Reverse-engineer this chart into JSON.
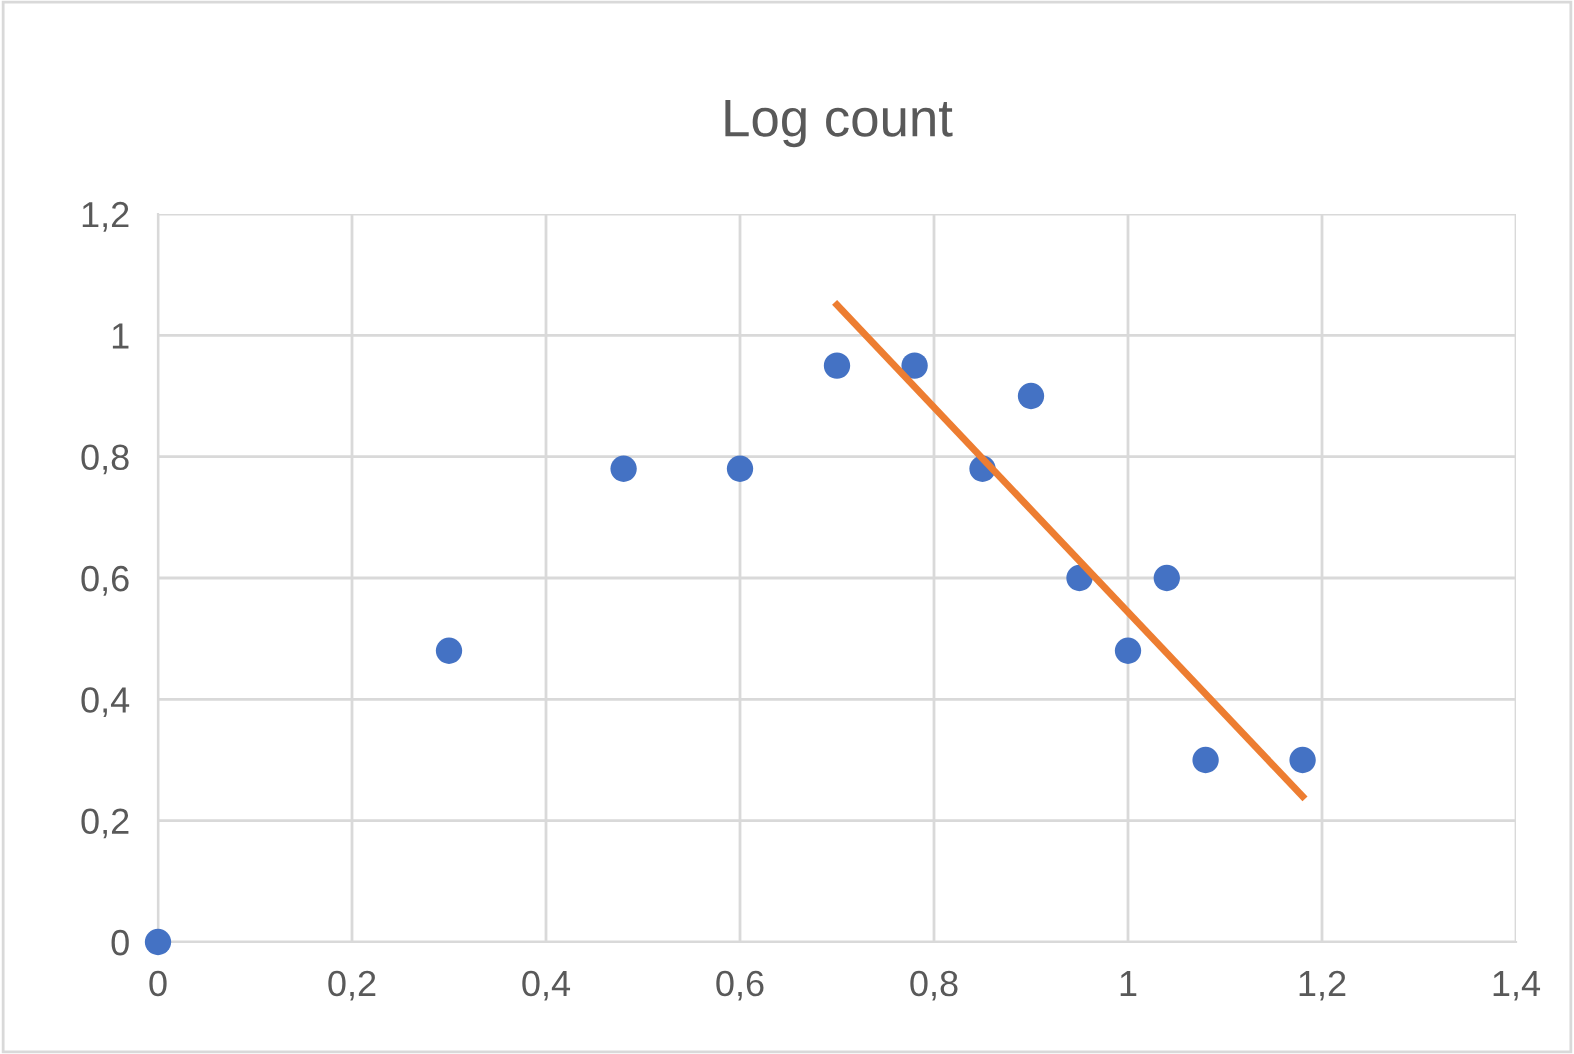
{
  "chart_data": {
    "type": "scatter",
    "title": "Log count",
    "series": [
      {
        "color": "#4472c4",
        "x": [
          0,
          0.3,
          0.48,
          0.6,
          0.7,
          0.78,
          0.85,
          0.9,
          0.95,
          1,
          1.04,
          1.08,
          1.18
        ],
        "values": [
          0,
          0.48,
          0.78,
          0.78,
          0.95,
          0.95,
          0.78,
          0.9,
          0.6,
          0.48,
          0.6,
          0.3,
          0.3
        ],
        "marker": "circle"
      },
      {
        "type": "line",
        "color": "#ed7d31",
        "x": [
          0.7,
          1.18
        ],
        "values": [
          1.05,
          0.24
        ],
        "marker": "none"
      }
    ],
    "xlim": [
      0,
      1.4
    ],
    "ylim": [
      0,
      1.2
    ],
    "xticks": [
      0,
      {
        "value": 0.2,
        "label": "0,2"
      },
      {
        "value": 0.4,
        "label": "0,4"
      },
      {
        "value": 0.6,
        "label": "0,6"
      },
      {
        "value": 0.8,
        "label": "0,8"
      },
      1,
      {
        "value": 1.2,
        "label": "1,2"
      },
      {
        "value": 1.4,
        "label": "1,4"
      }
    ],
    "yticks": [
      0,
      {
        "value": 0.2,
        "label": "0,2"
      },
      {
        "value": 0.4,
        "label": "0,4"
      },
      {
        "value": 0.6,
        "label": "0,6"
      },
      {
        "value": 0.8,
        "label": "0,8"
      },
      1,
      {
        "value": 1.2,
        "label": "1,2"
      }
    ],
    "grid": true,
    "legend": false
  }
}
